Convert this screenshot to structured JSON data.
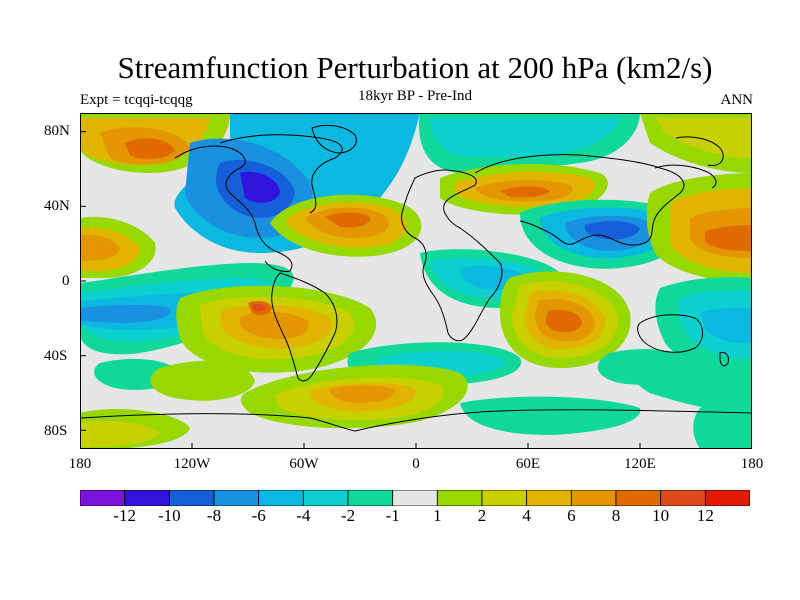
{
  "title": "Streamfunction Perturbation at 200 hPa (km2/s)",
  "left_label": "Expt = tcqqi-tcqqg",
  "center_label": "18kyr BP - Pre-Ind",
  "right_label": "ANN",
  "lat_ticks": [
    "80N",
    "40N",
    "0",
    "40S",
    "80S"
  ],
  "lon_ticks": [
    "180",
    "120W",
    "60W",
    "0",
    "60E",
    "120E",
    "180"
  ],
  "colorbar": {
    "colors": [
      "#7a14dc",
      "#2f14dc",
      "#1560d8",
      "#1a90e0",
      "#0ab8e0",
      "#0cd0d0",
      "#10d89a",
      "#e6e6e6",
      "#96d800",
      "#c8d000",
      "#e0b400",
      "#e49600",
      "#e06a00",
      "#e04a1a",
      "#e01a00"
    ],
    "labels": [
      "-12",
      "-10",
      "-8",
      "-6",
      "-4",
      "-2",
      "-1",
      "1",
      "2",
      "4",
      "6",
      "8",
      "10",
      "12"
    ]
  }
}
